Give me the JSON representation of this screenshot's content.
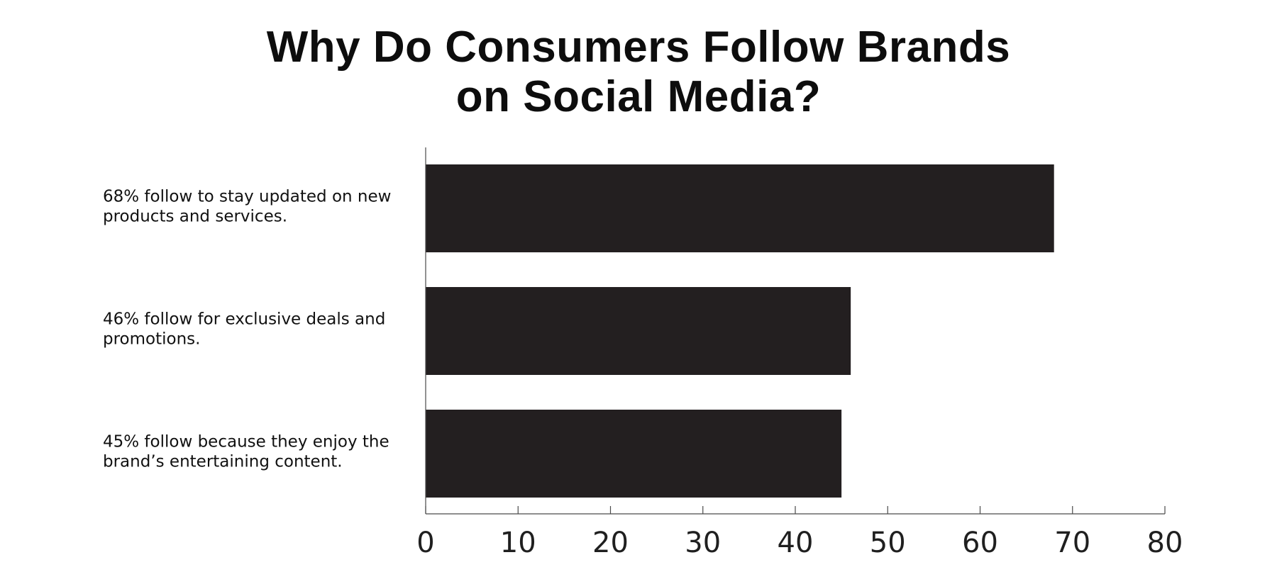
{
  "chart_data": {
    "type": "bar",
    "orientation": "horizontal",
    "title_lines": [
      "Why Do Consumers Follow Brands",
      "on Social Media?"
    ],
    "categories": [
      [
        "68% follow to stay updated on new",
        "products and services."
      ],
      [
        "46% follow for exclusive deals and",
        "promotions."
      ],
      [
        "45% follow because they enjoy the",
        "brand’s entertaining content."
      ]
    ],
    "values": [
      68,
      46,
      45
    ],
    "xlim": [
      0,
      80
    ],
    "xticks": [
      0,
      10,
      20,
      30,
      40,
      50,
      60,
      70,
      80
    ],
    "grid": false,
    "legend": "none",
    "bar_color": "#231f20"
  }
}
